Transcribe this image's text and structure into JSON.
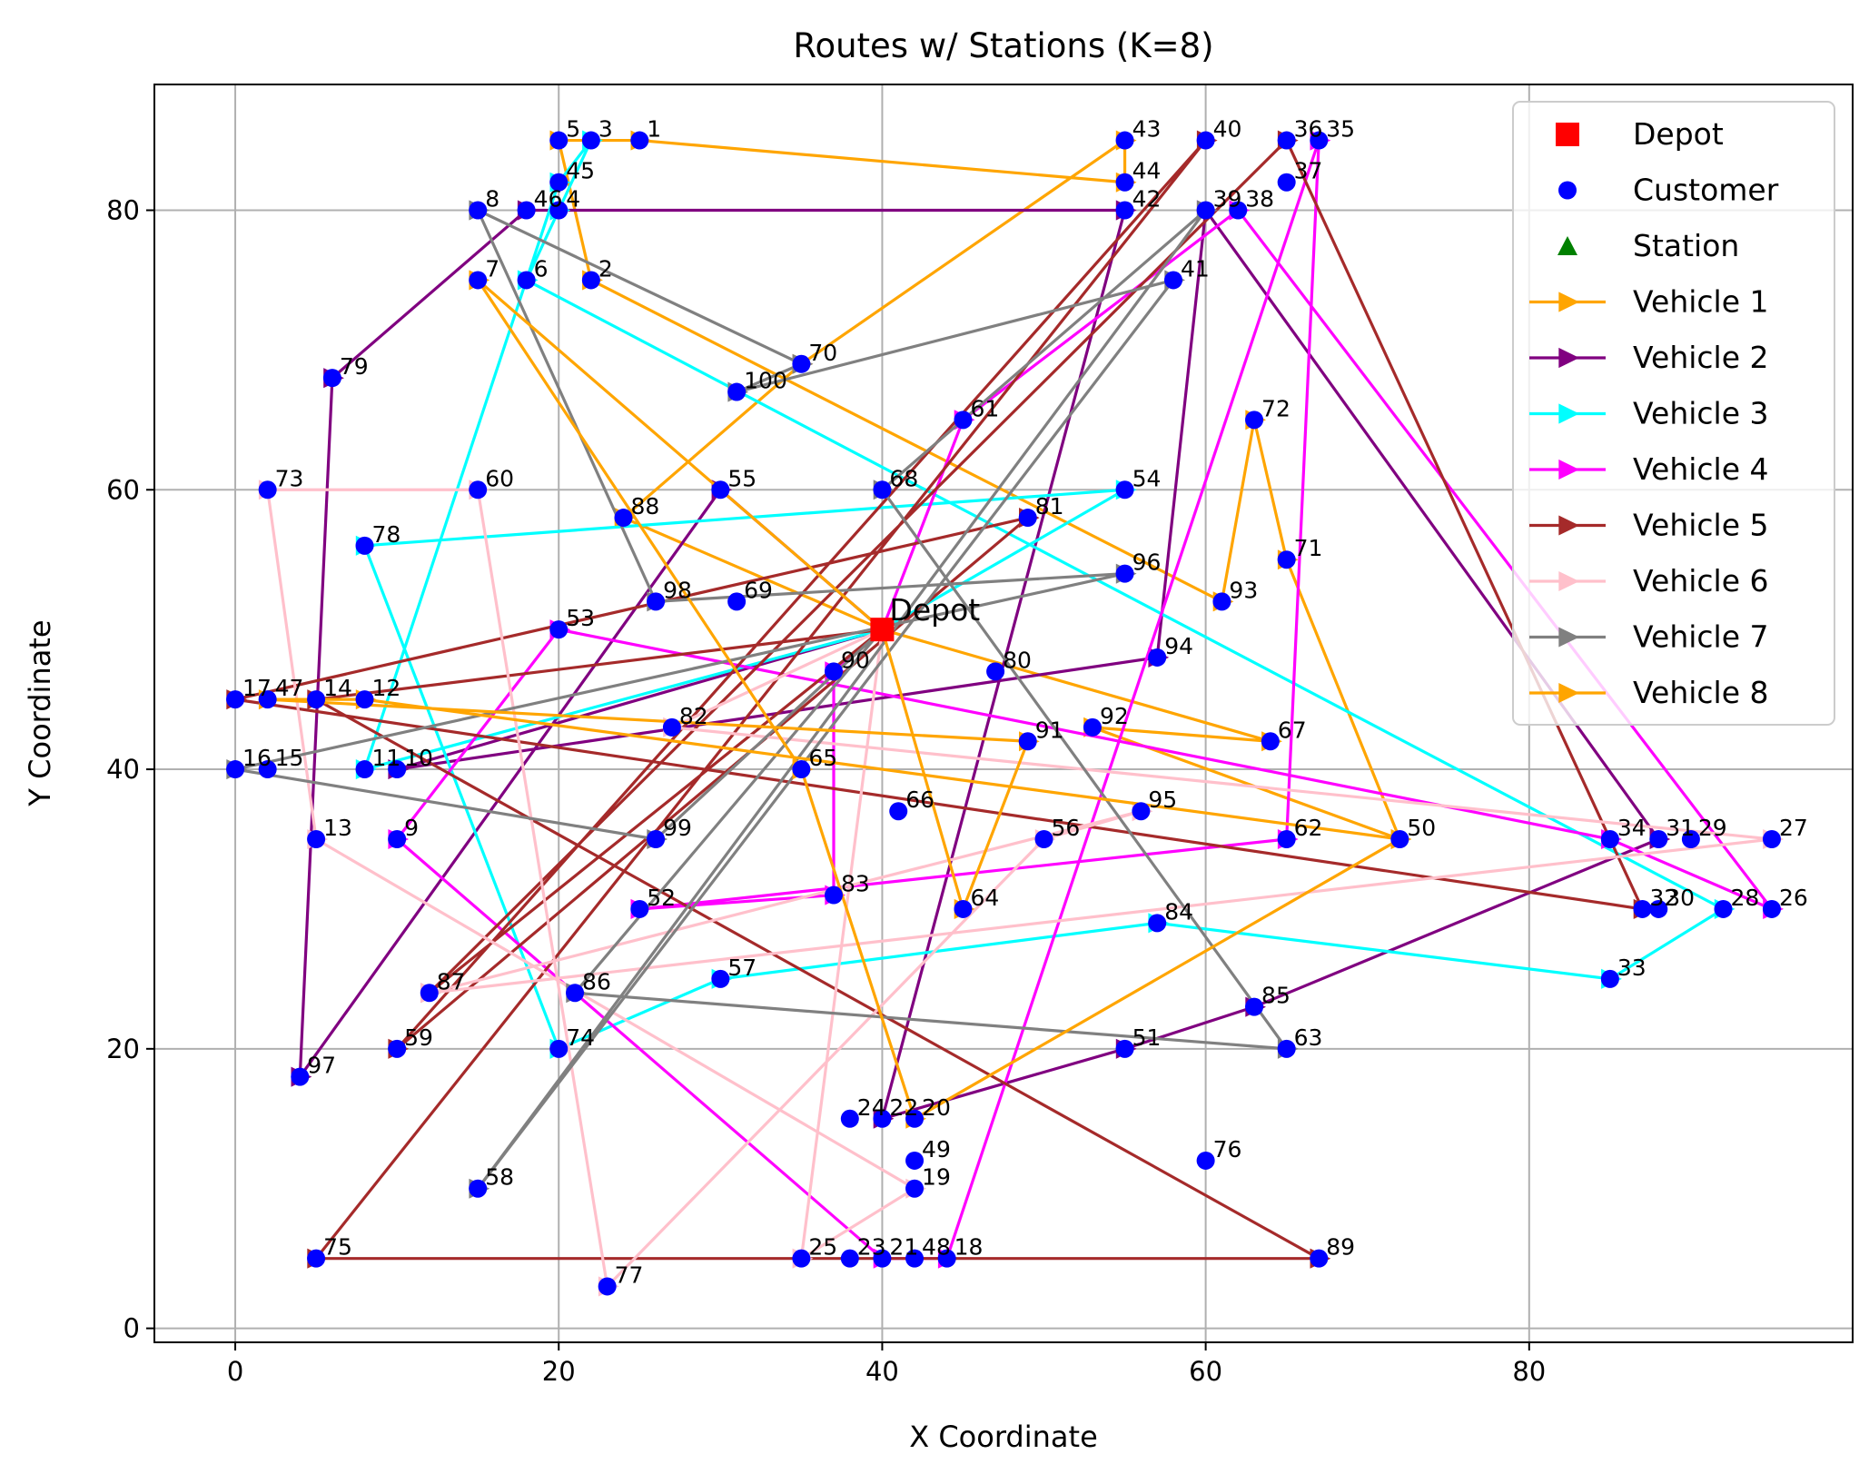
{
  "chart_data": {
    "type": "scatter",
    "title": "Routes w/ Stations (K=8)",
    "xlabel": "X Coordinate",
    "ylabel": "Y Coordinate",
    "xlim": [
      -5,
      100
    ],
    "ylim": [
      -1,
      89
    ],
    "xticks": [
      0,
      20,
      40,
      60,
      80
    ],
    "yticks": [
      0,
      20,
      40,
      60,
      80
    ],
    "grid": true,
    "legend_position": "top-right",
    "depot": {
      "label": "Depot",
      "x": 40,
      "y": 50,
      "color": "#ff0000"
    },
    "customer_color": "#0000ff",
    "station_color": "#008000",
    "legend": [
      {
        "label": "Depot",
        "marker": "square",
        "color": "#ff0000"
      },
      {
        "label": "Customer",
        "marker": "circle",
        "color": "#0000ff"
      },
      {
        "label": "Station",
        "marker": "triangle",
        "color": "#008000"
      },
      {
        "label": "Vehicle 1",
        "marker": "arrow",
        "color": "#ffa500"
      },
      {
        "label": "Vehicle 2",
        "marker": "arrow",
        "color": "#800080"
      },
      {
        "label": "Vehicle 3",
        "marker": "arrow",
        "color": "#00ffff"
      },
      {
        "label": "Vehicle 4",
        "marker": "arrow",
        "color": "#ff00ff"
      },
      {
        "label": "Vehicle 5",
        "marker": "arrow",
        "color": "#a52a2a"
      },
      {
        "label": "Vehicle 6",
        "marker": "arrow",
        "color": "#ffc0cb"
      },
      {
        "label": "Vehicle 7",
        "marker": "arrow",
        "color": "#808080"
      },
      {
        "label": "Vehicle 8",
        "marker": "arrow",
        "color": "#ffa500"
      }
    ],
    "customers": [
      {
        "id": "1",
        "x": 25,
        "y": 85
      },
      {
        "id": "2",
        "x": 22,
        "y": 75
      },
      {
        "id": "3",
        "x": 22,
        "y": 85
      },
      {
        "id": "4",
        "x": 20,
        "y": 80
      },
      {
        "id": "5",
        "x": 20,
        "y": 85
      },
      {
        "id": "6",
        "x": 18,
        "y": 75
      },
      {
        "id": "7",
        "x": 15,
        "y": 75
      },
      {
        "id": "8",
        "x": 15,
        "y": 80
      },
      {
        "id": "9",
        "x": 10,
        "y": 35
      },
      {
        "id": "10",
        "x": 10,
        "y": 40
      },
      {
        "id": "11",
        "x": 8,
        "y": 40
      },
      {
        "id": "12",
        "x": 8,
        "y": 45
      },
      {
        "id": "13",
        "x": 5,
        "y": 35
      },
      {
        "id": "14",
        "x": 5,
        "y": 45
      },
      {
        "id": "15",
        "x": 2,
        "y": 40
      },
      {
        "id": "16",
        "x": 0,
        "y": 40
      },
      {
        "id": "17",
        "x": 0,
        "y": 45
      },
      {
        "id": "18",
        "x": 44,
        "y": 5
      },
      {
        "id": "19",
        "x": 42,
        "y": 10
      },
      {
        "id": "20",
        "x": 42,
        "y": 15
      },
      {
        "id": "21",
        "x": 40,
        "y": 5
      },
      {
        "id": "22",
        "x": 40,
        "y": 15
      },
      {
        "id": "23",
        "x": 38,
        "y": 5
      },
      {
        "id": "24",
        "x": 38,
        "y": 15
      },
      {
        "id": "25",
        "x": 35,
        "y": 5
      },
      {
        "id": "26",
        "x": 95,
        "y": 30
      },
      {
        "id": "27",
        "x": 95,
        "y": 35
      },
      {
        "id": "28",
        "x": 92,
        "y": 30
      },
      {
        "id": "29",
        "x": 90,
        "y": 35
      },
      {
        "id": "30",
        "x": 88,
        "y": 30
      },
      {
        "id": "31",
        "x": 88,
        "y": 35
      },
      {
        "id": "32",
        "x": 87,
        "y": 30
      },
      {
        "id": "33",
        "x": 85,
        "y": 25
      },
      {
        "id": "34",
        "x": 85,
        "y": 35
      },
      {
        "id": "35",
        "x": 67,
        "y": 85
      },
      {
        "id": "36",
        "x": 65,
        "y": 85
      },
      {
        "id": "37",
        "x": 65,
        "y": 82
      },
      {
        "id": "38",
        "x": 62,
        "y": 80
      },
      {
        "id": "39",
        "x": 60,
        "y": 80
      },
      {
        "id": "40",
        "x": 60,
        "y": 85
      },
      {
        "id": "41",
        "x": 58,
        "y": 75
      },
      {
        "id": "42",
        "x": 55,
        "y": 80
      },
      {
        "id": "43",
        "x": 55,
        "y": 85
      },
      {
        "id": "44",
        "x": 55,
        "y": 82
      },
      {
        "id": "45",
        "x": 20,
        "y": 82
      },
      {
        "id": "46",
        "x": 18,
        "y": 80
      },
      {
        "id": "47",
        "x": 2,
        "y": 45
      },
      {
        "id": "48",
        "x": 42,
        "y": 5
      },
      {
        "id": "49",
        "x": 42,
        "y": 12
      },
      {
        "id": "50",
        "x": 72,
        "y": 35
      },
      {
        "id": "51",
        "x": 55,
        "y": 20
      },
      {
        "id": "52",
        "x": 25,
        "y": 30
      },
      {
        "id": "53",
        "x": 20,
        "y": 50
      },
      {
        "id": "54",
        "x": 55,
        "y": 60
      },
      {
        "id": "55",
        "x": 30,
        "y": 60
      },
      {
        "id": "56",
        "x": 50,
        "y": 35
      },
      {
        "id": "57",
        "x": 30,
        "y": 25
      },
      {
        "id": "58",
        "x": 15,
        "y": 10
      },
      {
        "id": "59",
        "x": 10,
        "y": 20
      },
      {
        "id": "60",
        "x": 15,
        "y": 60
      },
      {
        "id": "61",
        "x": 45,
        "y": 65
      },
      {
        "id": "62",
        "x": 65,
        "y": 35
      },
      {
        "id": "63",
        "x": 65,
        "y": 20
      },
      {
        "id": "64",
        "x": 45,
        "y": 30
      },
      {
        "id": "65",
        "x": 35,
        "y": 40
      },
      {
        "id": "66",
        "x": 41,
        "y": 37
      },
      {
        "id": "67",
        "x": 64,
        "y": 42
      },
      {
        "id": "68",
        "x": 40,
        "y": 60
      },
      {
        "id": "69",
        "x": 31,
        "y": 52
      },
      {
        "id": "70",
        "x": 35,
        "y": 69
      },
      {
        "id": "71",
        "x": 65,
        "y": 55
      },
      {
        "id": "72",
        "x": 63,
        "y": 65
      },
      {
        "id": "73",
        "x": 2,
        "y": 60
      },
      {
        "id": "74",
        "x": 20,
        "y": 20
      },
      {
        "id": "75",
        "x": 5,
        "y": 5
      },
      {
        "id": "76",
        "x": 60,
        "y": 12
      },
      {
        "id": "77",
        "x": 23,
        "y": 3
      },
      {
        "id": "78",
        "x": 8,
        "y": 56
      },
      {
        "id": "79",
        "x": 6,
        "y": 68
      },
      {
        "id": "80",
        "x": 47,
        "y": 47
      },
      {
        "id": "81",
        "x": 49,
        "y": 58
      },
      {
        "id": "82",
        "x": 27,
        "y": 43
      },
      {
        "id": "83",
        "x": 37,
        "y": 31
      },
      {
        "id": "84",
        "x": 57,
        "y": 29
      },
      {
        "id": "85",
        "x": 63,
        "y": 23
      },
      {
        "id": "86",
        "x": 21,
        "y": 24
      },
      {
        "id": "87",
        "x": 12,
        "y": 24
      },
      {
        "id": "88",
        "x": 24,
        "y": 58
      },
      {
        "id": "89",
        "x": 67,
        "y": 5
      },
      {
        "id": "90",
        "x": 37,
        "y": 47
      },
      {
        "id": "91",
        "x": 49,
        "y": 42
      },
      {
        "id": "92",
        "x": 53,
        "y": 43
      },
      {
        "id": "93",
        "x": 61,
        "y": 52
      },
      {
        "id": "94",
        "x": 57,
        "y": 48
      },
      {
        "id": "95",
        "x": 56,
        "y": 37
      },
      {
        "id": "96",
        "x": 55,
        "y": 54
      },
      {
        "id": "97",
        "x": 4,
        "y": 18
      },
      {
        "id": "98",
        "x": 26,
        "y": 52
      },
      {
        "id": "99",
        "x": 26,
        "y": 35
      },
      {
        "id": "100",
        "x": 31,
        "y": 67
      }
    ],
    "routes": [
      {
        "name": "Vehicle 1",
        "color": "#ffa500",
        "stops": [
          "depot",
          "67",
          "92",
          "50",
          "71",
          "72",
          "93",
          "2",
          "5",
          "1",
          "44",
          "43",
          "70",
          "88",
          "depot"
        ]
      },
      {
        "name": "Vehicle 2",
        "color": "#800080",
        "stops": [
          "depot",
          "55",
          "97",
          "79",
          "46",
          "42",
          "22",
          "51",
          "85",
          "31",
          "39",
          "94",
          "10",
          "depot"
        ]
      },
      {
        "name": "Vehicle 3",
        "color": "#00ffff",
        "stops": [
          "depot",
          "11",
          "45",
          "3",
          "4",
          "6",
          "28",
          "33",
          "84",
          "57",
          "74",
          "78",
          "54",
          "depot"
        ]
      },
      {
        "name": "Vehicle 4",
        "color": "#ff00ff",
        "stops": [
          "depot",
          "61",
          "38",
          "26",
          "34",
          "53",
          "9",
          "21",
          "18",
          "35",
          "62",
          "52",
          "83",
          "90",
          "depot"
        ]
      },
      {
        "name": "Vehicle 5",
        "color": "#a52a2a",
        "stops": [
          "depot",
          "87",
          "36",
          "32",
          "17",
          "81",
          "59",
          "40",
          "75",
          "89",
          "14",
          "depot"
        ]
      },
      {
        "name": "Vehicle 6",
        "color": "#ffc0cb",
        "stops": [
          "depot",
          "82",
          "27",
          "87",
          "95",
          "56",
          "77",
          "60",
          "73",
          "13",
          "19",
          "25",
          "depot"
        ]
      },
      {
        "name": "Vehicle 7",
        "color": "#808080",
        "stops": [
          "depot",
          "99",
          "16",
          "96",
          "98",
          "8",
          "70",
          "100",
          "41",
          "58",
          "39",
          "68",
          "63",
          "86",
          "depot"
        ]
      },
      {
        "name": "Vehicle 8",
        "color": "#ffa500",
        "stops": [
          "depot",
          "7",
          "65",
          "20",
          "50",
          "12",
          "47",
          "91",
          "64",
          "depot"
        ]
      }
    ]
  }
}
